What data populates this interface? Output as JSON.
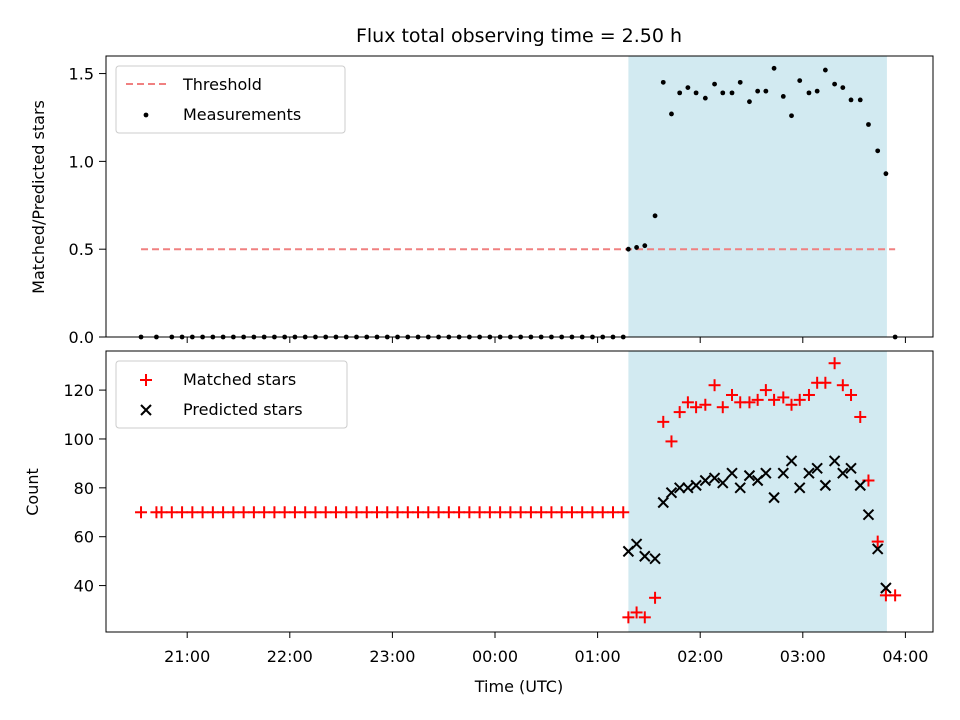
{
  "chart_data": [
    {
      "type": "scatter",
      "title": "Flux total observing time = 2.50 h",
      "xlabel": "",
      "ylabel": "Matched/Predicted stars",
      "ylim": [
        0,
        1.6
      ],
      "yticks": [
        "0.0",
        "0.5",
        "1.0",
        "1.5"
      ],
      "x_unit": "hours from 00:00 UTC",
      "highlight": {
        "x0": 1.3,
        "x1": 3.82,
        "color": "#add8e6"
      },
      "threshold": {
        "name": "Threshold",
        "value": 0.5,
        "x0": -3.45,
        "x1": 3.9,
        "color": "#f08080"
      },
      "series": [
        {
          "name": "Measurements",
          "marker": "dot",
          "color": "#000000",
          "x": [
            -3.45,
            -3.3,
            -3.15,
            -3.05,
            -2.95,
            -2.85,
            -2.75,
            -2.65,
            -2.55,
            -2.45,
            -2.35,
            -2.25,
            -2.15,
            -2.05,
            -1.95,
            -1.85,
            -1.75,
            -1.65,
            -1.55,
            -1.45,
            -1.35,
            -1.25,
            -1.15,
            -1.05,
            -0.95,
            -0.85,
            -0.75,
            -0.65,
            -0.55,
            -0.45,
            -0.35,
            -0.25,
            -0.15,
            -0.05,
            0.05,
            0.15,
            0.25,
            0.35,
            0.45,
            0.55,
            0.65,
            0.75,
            0.85,
            0.95,
            1.05,
            1.15,
            1.25,
            1.3,
            1.38,
            1.46,
            1.56,
            1.64,
            1.72,
            1.8,
            1.88,
            1.96,
            2.05,
            2.14,
            2.22,
            2.31,
            2.39,
            2.48,
            2.56,
            2.64,
            2.72,
            2.81,
            2.89,
            2.97,
            3.06,
            3.14,
            3.22,
            3.31,
            3.39,
            3.47,
            3.56,
            3.64,
            3.73,
            3.81,
            3.9
          ],
          "y": [
            0,
            0,
            0,
            0,
            0,
            0,
            0,
            0,
            0,
            0,
            0,
            0,
            0,
            0,
            0,
            0,
            0,
            0,
            0,
            0,
            0,
            0,
            0,
            0,
            0,
            0,
            0,
            0,
            0,
            0,
            0,
            0,
            0,
            0,
            0,
            0,
            0,
            0,
            0,
            0,
            0,
            0,
            0,
            0,
            0,
            0,
            0,
            0.5,
            0.51,
            0.52,
            0.69,
            1.45,
            1.27,
            1.39,
            1.42,
            1.39,
            1.36,
            1.44,
            1.39,
            1.39,
            1.45,
            1.34,
            1.4,
            1.4,
            1.53,
            1.37,
            1.26,
            1.46,
            1.39,
            1.4,
            1.52,
            1.44,
            1.42,
            1.35,
            1.35,
            1.21,
            1.06,
            0.93,
            0.0
          ]
        }
      ]
    },
    {
      "type": "scatter",
      "title": "",
      "xlabel": "Time (UTC)",
      "ylabel": "Count",
      "ylim": [
        21,
        136
      ],
      "yticks": [
        "40",
        "60",
        "80",
        "100",
        "120"
      ],
      "xticks": [
        "21:00",
        "22:00",
        "23:00",
        "00:00",
        "01:00",
        "02:00",
        "03:00",
        "04:00"
      ],
      "x_unit": "hours from 00:00 UTC",
      "highlight": {
        "x0": 1.3,
        "x1": 3.82,
        "color": "#add8e6"
      },
      "series": [
        {
          "name": "Matched stars",
          "marker": "plus",
          "color": "#ff0000",
          "x": [
            -3.45,
            -3.3,
            -3.25,
            -3.15,
            -3.05,
            -2.95,
            -2.85,
            -2.75,
            -2.65,
            -2.55,
            -2.45,
            -2.35,
            -2.25,
            -2.15,
            -2.05,
            -1.95,
            -1.85,
            -1.75,
            -1.65,
            -1.55,
            -1.45,
            -1.35,
            -1.25,
            -1.15,
            -1.05,
            -0.95,
            -0.85,
            -0.75,
            -0.65,
            -0.55,
            -0.45,
            -0.35,
            -0.25,
            -0.15,
            -0.05,
            0.05,
            0.15,
            0.25,
            0.35,
            0.45,
            0.55,
            0.65,
            0.75,
            0.85,
            0.95,
            1.05,
            1.15,
            1.25,
            1.3,
            1.38,
            1.46,
            1.56,
            1.64,
            1.72,
            1.8,
            1.88,
            1.96,
            2.05,
            2.14,
            2.22,
            2.31,
            2.39,
            2.48,
            2.56,
            2.64,
            2.72,
            2.81,
            2.89,
            2.97,
            3.06,
            3.14,
            3.22,
            3.31,
            3.39,
            3.47,
            3.56,
            3.64,
            3.73,
            3.81,
            3.9
          ],
          "y": [
            70,
            70,
            70,
            70,
            70,
            70,
            70,
            70,
            70,
            70,
            70,
            70,
            70,
            70,
            70,
            70,
            70,
            70,
            70,
            70,
            70,
            70,
            70,
            70,
            70,
            70,
            70,
            70,
            70,
            70,
            70,
            70,
            70,
            70,
            70,
            70,
            70,
            70,
            70,
            70,
            70,
            70,
            70,
            70,
            70,
            70,
            70,
            70,
            27,
            29,
            27,
            35,
            107,
            99,
            111,
            115,
            113,
            114,
            122,
            113,
            118,
            115,
            115,
            116,
            120,
            116,
            117,
            114,
            116,
            118,
            123,
            123,
            131,
            122,
            118,
            109,
            83,
            58,
            36,
            36
          ]
        },
        {
          "name": "Predicted stars",
          "marker": "x",
          "color": "#000000",
          "x": [
            1.3,
            1.38,
            1.46,
            1.56,
            1.64,
            1.72,
            1.8,
            1.88,
            1.96,
            2.05,
            2.14,
            2.22,
            2.31,
            2.39,
            2.48,
            2.56,
            2.64,
            2.72,
            2.81,
            2.89,
            2.97,
            3.06,
            3.14,
            3.22,
            3.31,
            3.39,
            3.47,
            3.56,
            3.64,
            3.73,
            3.81
          ],
          "y": [
            54,
            57,
            52,
            51,
            74,
            78,
            80,
            80,
            81,
            83,
            84,
            82,
            86,
            80,
            85,
            83,
            86,
            76,
            86,
            91,
            80,
            86,
            88,
            81,
            91,
            86,
            88,
            81,
            69,
            55,
            39
          ]
        }
      ]
    }
  ]
}
